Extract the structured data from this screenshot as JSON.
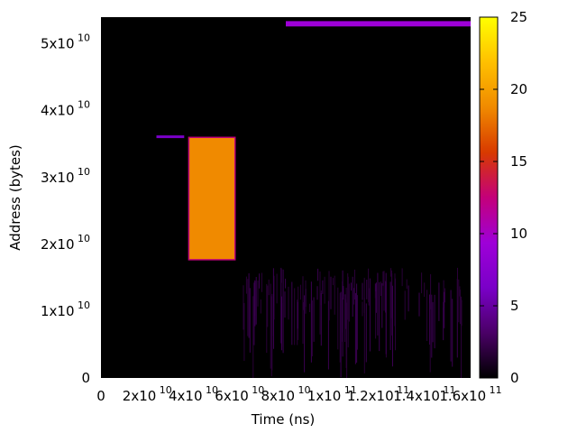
{
  "chart_data": {
    "type": "heatmap",
    "title": "",
    "xlabel": "Time (ns)",
    "ylabel": "Address (bytes)",
    "xlim": [
      0,
      160000000000.0
    ],
    "ylim": [
      0,
      54000000000.0
    ],
    "x_ticks": [
      {
        "value": 0,
        "mantissa": "0",
        "exponent": ""
      },
      {
        "value": 20000000000.0,
        "mantissa": "2x10",
        "exponent": "10"
      },
      {
        "value": 40000000000.0,
        "mantissa": "4x10",
        "exponent": "10"
      },
      {
        "value": 60000000000.0,
        "mantissa": "6x10",
        "exponent": "10"
      },
      {
        "value": 80000000000.0,
        "mantissa": "8x10",
        "exponent": "10"
      },
      {
        "value": 100000000000.0,
        "mantissa": "1x10",
        "exponent": "11"
      },
      {
        "value": 120000000000.0,
        "mantissa": "1.2x10",
        "exponent": "11"
      },
      {
        "value": 140000000000.0,
        "mantissa": "1.4x10",
        "exponent": "11"
      },
      {
        "value": 160000000000.0,
        "mantissa": "1.6x10",
        "exponent": "11"
      }
    ],
    "y_ticks": [
      {
        "value": 0,
        "mantissa": "0",
        "exponent": ""
      },
      {
        "value": 10000000000.0,
        "mantissa": "1x10",
        "exponent": "10"
      },
      {
        "value": 20000000000.0,
        "mantissa": "2x10",
        "exponent": "10"
      },
      {
        "value": 30000000000.0,
        "mantissa": "3x10",
        "exponent": "10"
      },
      {
        "value": 40000000000.0,
        "mantissa": "4x10",
        "exponent": "10"
      },
      {
        "value": 50000000000.0,
        "mantissa": "5x10",
        "exponent": "10"
      }
    ],
    "colorbar": {
      "min": 0,
      "max": 25,
      "ticks": [
        0,
        5,
        10,
        15,
        20,
        25
      ],
      "colormap": [
        "#000000",
        "#4a0066",
        "#7a00c8",
        "#9e00d8",
        "#c4007a",
        "#d83a00",
        "#f08a00",
        "#ffc000",
        "#ffff00"
      ]
    },
    "regions": [
      {
        "x0": 80000000000.0,
        "x1": 161000000000.0,
        "y0": 52600000000.0,
        "y1": 53400000000.0,
        "value": 8
      },
      {
        "x0": 38000000000.0,
        "x1": 58000000000.0,
        "y0": 17700000000.0,
        "y1": 36000000000.0,
        "value": 19
      },
      {
        "x0": 24000000000.0,
        "x1": 36000000000.0,
        "y0": 35900000000.0,
        "y1": 36300000000.0,
        "value": 7
      }
    ],
    "grid": false,
    "legend": "colorbar-right"
  }
}
